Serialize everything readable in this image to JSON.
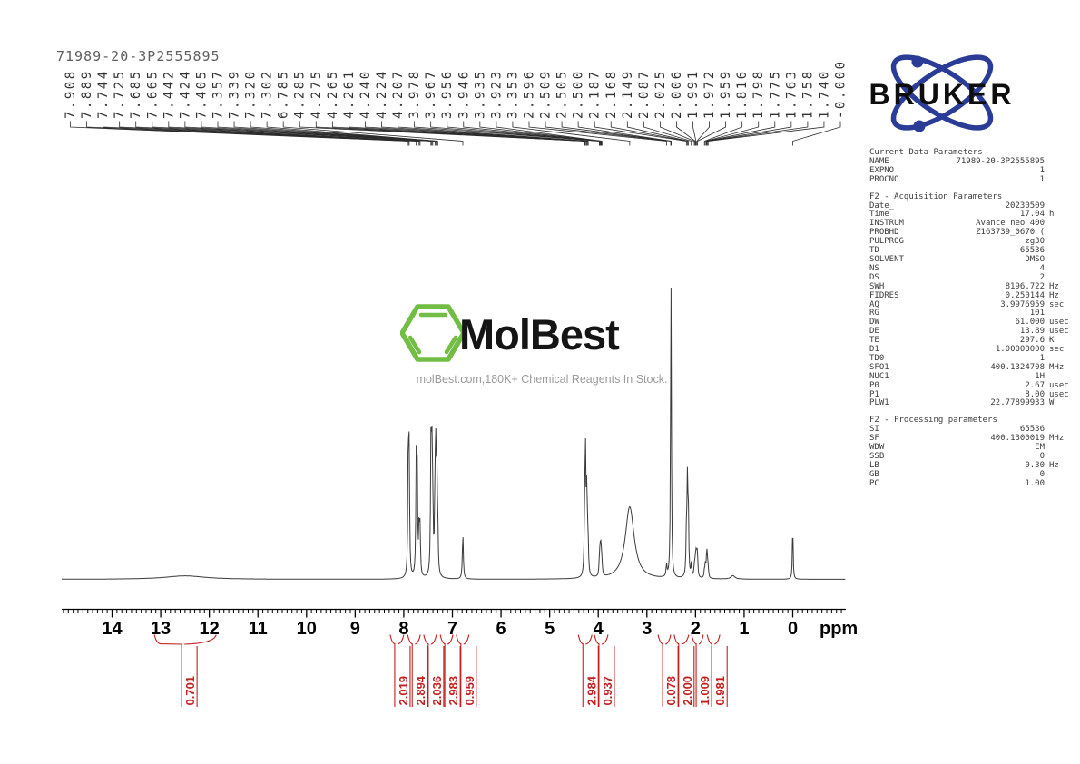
{
  "title": "71989-20-3P2555895",
  "colors": {
    "integral_red": "#C41F1F",
    "bruker_blue": "#2B3C97",
    "molbest_green": "#72BE44",
    "trace": "#3a3a3a"
  },
  "bruker_logo": {
    "text": "BRUKER"
  },
  "watermark": {
    "brand": "MolBest",
    "tagline": "molBest.com,180K+ Chemical Reagents In Stock."
  },
  "peak_labels": [
    "7.908",
    "7.889",
    "7.744",
    "7.725",
    "7.685",
    "7.665",
    "7.442",
    "7.424",
    "7.405",
    "7.357",
    "7.339",
    "7.320",
    "7.302",
    "6.785",
    "4.285",
    "4.275",
    "4.265",
    "4.261",
    "4.240",
    "4.224",
    "4.207",
    "3.978",
    "3.967",
    "3.956",
    "3.946",
    "3.935",
    "3.923",
    "3.353",
    "2.596",
    "2.509",
    "2.505",
    "2.500",
    "2.187",
    "2.168",
    "2.149",
    "2.087",
    "2.025",
    "2.006",
    "1.991",
    "1.972",
    "1.959",
    "1.816",
    "1.798",
    "1.775",
    "1.763",
    "1.758",
    "1.740",
    "-0.000"
  ],
  "axis": {
    "unit": "ppm",
    "major_ticks": [
      14,
      13,
      12,
      11,
      10,
      9,
      8,
      7,
      6,
      5,
      4,
      3,
      2,
      1,
      0
    ]
  },
  "integrals": [
    {
      "value": "0.701",
      "region_ppm": [
        13.13,
        11.86
      ]
    },
    {
      "value": "2.019",
      "region_ppm": [
        8.28,
        8.0
      ]
    },
    {
      "value": "2.894",
      "region_ppm": [
        7.92,
        7.66
      ]
    },
    {
      "value": "2.036",
      "region_ppm": [
        7.59,
        7.33
      ]
    },
    {
      "value": "2.983",
      "region_ppm": [
        7.25,
        6.99
      ]
    },
    {
      "value": "0.959",
      "region_ppm": [
        6.92,
        6.66
      ]
    },
    {
      "value": "2.984",
      "region_ppm": [
        4.41,
        4.13
      ]
    },
    {
      "value": "0.937",
      "region_ppm": [
        4.08,
        3.8
      ]
    },
    {
      "value": "0.078",
      "region_ppm": [
        2.77,
        2.51
      ]
    },
    {
      "value": "2.000",
      "region_ppm": [
        2.44,
        2.14
      ]
    },
    {
      "value": "1.009",
      "region_ppm": [
        2.08,
        1.84
      ]
    },
    {
      "value": "0.981",
      "region_ppm": [
        1.76,
        1.5
      ]
    }
  ],
  "parameters": {
    "sections": [
      {
        "heading": "Current Data Parameters",
        "rows": [
          {
            "k": "NAME",
            "v": "71989-20-3P2555895",
            "u": ""
          },
          {
            "k": "EXPNO",
            "v": "1",
            "u": ""
          },
          {
            "k": "PROCNO",
            "v": "1",
            "u": ""
          }
        ]
      },
      {
        "heading": "F2 - Acquisition Parameters",
        "rows": [
          {
            "k": "Date_",
            "v": "20230509",
            "u": ""
          },
          {
            "k": "Time",
            "v": "17.04",
            "u": "h"
          },
          {
            "k": "INSTRUM",
            "v": "Avance neo 400",
            "u": ""
          },
          {
            "k": "PROBHD",
            "v": "Z163739_0670 (",
            "u": ""
          },
          {
            "k": "PULPROG",
            "v": "zg30",
            "u": ""
          },
          {
            "k": "TD",
            "v": "65536",
            "u": ""
          },
          {
            "k": "SOLVENT",
            "v": "DMSO",
            "u": ""
          },
          {
            "k": "NS",
            "v": "4",
            "u": ""
          },
          {
            "k": "DS",
            "v": "2",
            "u": ""
          },
          {
            "k": "SWH",
            "v": "8196.722",
            "u": "Hz"
          },
          {
            "k": "FIDRES",
            "v": "0.250144",
            "u": "Hz"
          },
          {
            "k": "AQ",
            "v": "3.9976959",
            "u": "sec"
          },
          {
            "k": "RG",
            "v": "101",
            "u": ""
          },
          {
            "k": "DW",
            "v": "61.000",
            "u": "usec"
          },
          {
            "k": "DE",
            "v": "13.89",
            "u": "usec"
          },
          {
            "k": "TE",
            "v": "297.6",
            "u": "K"
          },
          {
            "k": "D1",
            "v": "1.00000000",
            "u": "sec"
          },
          {
            "k": "TD0",
            "v": "1",
            "u": ""
          },
          {
            "k": "SFO1",
            "v": "400.1324708",
            "u": "MHz"
          },
          {
            "k": "NUC1",
            "v": "1H",
            "u": ""
          },
          {
            "k": "P0",
            "v": "2.67",
            "u": "usec"
          },
          {
            "k": "P1",
            "v": "8.00",
            "u": "usec"
          },
          {
            "k": "PLW1",
            "v": "22.77899933",
            "u": "W"
          }
        ]
      },
      {
        "heading": "F2 - Processing parameters",
        "rows": [
          {
            "k": "SI",
            "v": "65536",
            "u": ""
          },
          {
            "k": "SF",
            "v": "400.1300019",
            "u": "MHz"
          },
          {
            "k": "WDW",
            "v": "EM",
            "u": ""
          },
          {
            "k": "SSB",
            "v": "0",
            "u": ""
          },
          {
            "k": "LB",
            "v": "0.30",
            "u": "Hz"
          },
          {
            "k": "GB",
            "v": "0",
            "u": ""
          },
          {
            "k": "PC",
            "v": "1.00",
            "u": ""
          }
        ]
      }
    ]
  },
  "chart_data": {
    "type": "line",
    "title": "71989-20-3P2555895",
    "xlabel": "ppm",
    "xlim": [
      15.0,
      -1.1
    ],
    "x_ticks": [
      14,
      13,
      12,
      11,
      10,
      9,
      8,
      7,
      6,
      5,
      4,
      3,
      2,
      1,
      0
    ],
    "grid": false,
    "peak_list_ppm": [
      7.908,
      7.889,
      7.744,
      7.725,
      7.685,
      7.665,
      7.442,
      7.424,
      7.405,
      7.357,
      7.339,
      7.32,
      7.302,
      6.785,
      4.285,
      4.275,
      4.265,
      4.261,
      4.24,
      4.224,
      4.207,
      3.978,
      3.967,
      3.956,
      3.946,
      3.935,
      3.923,
      3.353,
      2.596,
      2.509,
      2.505,
      2.5,
      2.187,
      2.168,
      2.149,
      2.087,
      2.025,
      2.006,
      1.991,
      1.972,
      1.959,
      1.816,
      1.798,
      1.775,
      1.763,
      1.758,
      1.74,
      -0.0
    ],
    "integrations": [
      {
        "value": 0.701,
        "region_ppm": [
          13.13,
          11.86
        ]
      },
      {
        "value": 2.019,
        "region_ppm": [
          8.28,
          8.0
        ]
      },
      {
        "value": 2.894,
        "region_ppm": [
          7.92,
          7.66
        ]
      },
      {
        "value": 2.036,
        "region_ppm": [
          7.59,
          7.33
        ]
      },
      {
        "value": 2.983,
        "region_ppm": [
          7.25,
          6.99
        ]
      },
      {
        "value": 0.959,
        "region_ppm": [
          6.92,
          6.66
        ]
      },
      {
        "value": 2.984,
        "region_ppm": [
          4.41,
          4.13
        ]
      },
      {
        "value": 0.937,
        "region_ppm": [
          4.08,
          3.8
        ]
      },
      {
        "value": 0.078,
        "region_ppm": [
          2.77,
          2.51
        ]
      },
      {
        "value": 2.0,
        "region_ppm": [
          2.44,
          2.14
        ]
      },
      {
        "value": 1.009,
        "region_ppm": [
          2.08,
          1.84
        ]
      },
      {
        "value": 0.981,
        "region_ppm": [
          1.76,
          1.5
        ]
      }
    ],
    "profile_peaks": [
      {
        "ppm": 12.5,
        "h": 0.012,
        "w": 0.5
      },
      {
        "ppm": 7.908,
        "h": 0.46,
        "w": 0.01
      },
      {
        "ppm": 7.889,
        "h": 0.4,
        "w": 0.01
      },
      {
        "ppm": 7.744,
        "h": 0.38,
        "w": 0.01
      },
      {
        "ppm": 7.725,
        "h": 0.36,
        "w": 0.01
      },
      {
        "ppm": 7.685,
        "h": 0.17,
        "w": 0.01
      },
      {
        "ppm": 7.665,
        "h": 0.155,
        "w": 0.01
      },
      {
        "ppm": 7.442,
        "h": 0.4,
        "w": 0.01
      },
      {
        "ppm": 7.424,
        "h": 0.42,
        "w": 0.01
      },
      {
        "ppm": 7.405,
        "h": 0.25,
        "w": 0.01
      },
      {
        "ppm": 7.357,
        "h": 0.3,
        "w": 0.01
      },
      {
        "ppm": 7.339,
        "h": 0.38,
        "w": 0.01
      },
      {
        "ppm": 7.32,
        "h": 0.28,
        "w": 0.01
      },
      {
        "ppm": 7.302,
        "h": 0.16,
        "w": 0.01
      },
      {
        "ppm": 6.785,
        "h": 0.155,
        "w": 0.012
      },
      {
        "ppm": 4.285,
        "h": 0.08,
        "w": 0.01
      },
      {
        "ppm": 4.275,
        "h": 0.13,
        "w": 0.01
      },
      {
        "ppm": 4.265,
        "h": 0.19,
        "w": 0.01
      },
      {
        "ppm": 4.261,
        "h": 0.2,
        "w": 0.01
      },
      {
        "ppm": 4.24,
        "h": 0.23,
        "w": 0.01
      },
      {
        "ppm": 4.224,
        "h": 0.15,
        "w": 0.01
      },
      {
        "ppm": 4.207,
        "h": 0.08,
        "w": 0.01
      },
      {
        "ppm": 3.978,
        "h": 0.035,
        "w": 0.01
      },
      {
        "ppm": 3.967,
        "h": 0.05,
        "w": 0.01
      },
      {
        "ppm": 3.956,
        "h": 0.06,
        "w": 0.01
      },
      {
        "ppm": 3.946,
        "h": 0.055,
        "w": 0.01
      },
      {
        "ppm": 3.935,
        "h": 0.045,
        "w": 0.01
      },
      {
        "ppm": 3.923,
        "h": 0.03,
        "w": 0.01
      },
      {
        "ppm": 3.353,
        "h": 0.25,
        "w": 0.11
      },
      {
        "ppm": 2.596,
        "h": 0.04,
        "w": 0.012
      },
      {
        "ppm": 2.509,
        "h": 0.12,
        "w": 0.009
      },
      {
        "ppm": 2.505,
        "h": 0.93,
        "w": 0.009
      },
      {
        "ppm": 2.5,
        "h": 0.12,
        "w": 0.009
      },
      {
        "ppm": 2.187,
        "h": 0.14,
        "w": 0.01
      },
      {
        "ppm": 2.168,
        "h": 0.3,
        "w": 0.01
      },
      {
        "ppm": 2.149,
        "h": 0.24,
        "w": 0.01
      },
      {
        "ppm": 2.087,
        "h": 0.045,
        "w": 0.01
      },
      {
        "ppm": 2.025,
        "h": 0.035,
        "w": 0.01
      },
      {
        "ppm": 2.006,
        "h": 0.045,
        "w": 0.01
      },
      {
        "ppm": 1.991,
        "h": 0.07,
        "w": 0.01
      },
      {
        "ppm": 1.972,
        "h": 0.07,
        "w": 0.01
      },
      {
        "ppm": 1.959,
        "h": 0.055,
        "w": 0.01
      },
      {
        "ppm": 1.816,
        "h": 0.025,
        "w": 0.01
      },
      {
        "ppm": 1.798,
        "h": 0.04,
        "w": 0.01
      },
      {
        "ppm": 1.775,
        "h": 0.045,
        "w": 0.01
      },
      {
        "ppm": 1.763,
        "h": 0.045,
        "w": 0.01
      },
      {
        "ppm": 1.758,
        "h": 0.04,
        "w": 0.01
      },
      {
        "ppm": 1.74,
        "h": 0.03,
        "w": 0.01
      },
      {
        "ppm": 1.23,
        "h": 0.012,
        "w": 0.05
      },
      {
        "ppm": 0.0,
        "h": 0.195,
        "w": 0.009
      }
    ]
  }
}
